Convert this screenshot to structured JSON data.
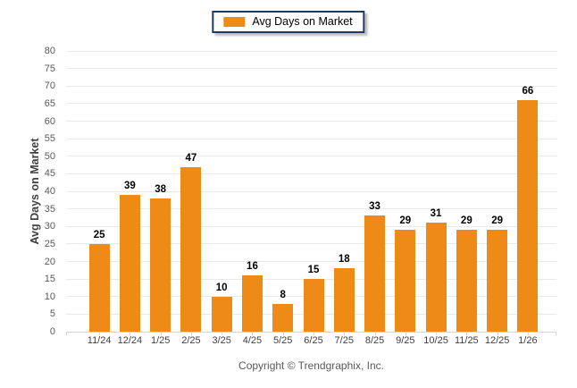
{
  "chart_data": {
    "type": "bar",
    "title": "Avg Days on Market",
    "categories": [
      "11/24",
      "12/24",
      "1/25",
      "2/25",
      "3/25",
      "4/25",
      "5/25",
      "6/25",
      "7/25",
      "8/25",
      "9/25",
      "10/25",
      "11/25",
      "12/25",
      "1/26"
    ],
    "values": [
      25,
      39,
      38,
      47,
      10,
      16,
      8,
      15,
      18,
      33,
      29,
      31,
      29,
      29,
      66
    ],
    "xlabel": "",
    "ylabel": "Avg Days on Market",
    "ylim": [
      0,
      80
    ],
    "ytick_step": 5,
    "grid": true,
    "legend_position": "top-center",
    "bar_color": "#EE8B17"
  },
  "colors": {
    "bar": "#EE8B17",
    "gridline": "#E9E9E9",
    "axis_line": "#D6D6D6",
    "axis_tick": "#D6D6D6",
    "legend_border": "#1F3864",
    "y_tick_label": "#595959",
    "x_tick_label": "#3F3F3F",
    "value_label": "#000000",
    "copyright_text": "#595959"
  },
  "footer": {
    "copyright": "Copyright © Trendgraphix, Inc."
  }
}
